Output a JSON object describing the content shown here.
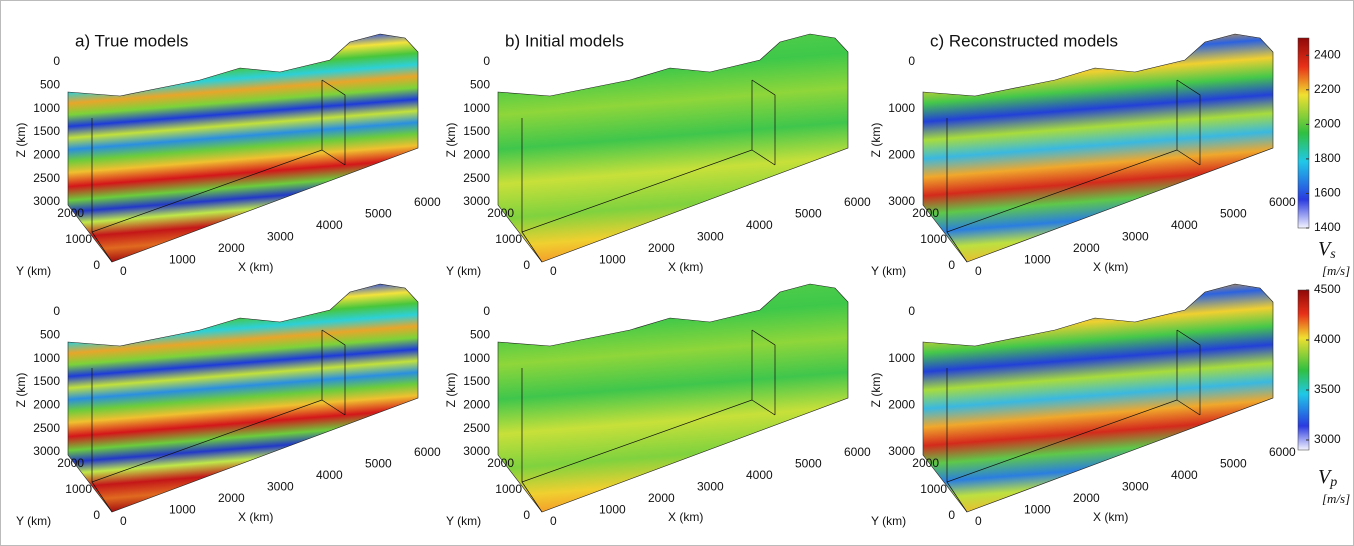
{
  "panels": [
    {
      "title": "a) True models",
      "z_ticks": [
        0,
        500,
        1000,
        1500,
        2000,
        2500,
        3000
      ]
    },
    {
      "title": "b) Initial models",
      "z_ticks": [
        0,
        500,
        1000,
        1500,
        2000,
        2500,
        3000
      ]
    },
    {
      "title": "c) Reconstructed models",
      "z_ticks": [
        0,
        1000,
        2000,
        3000
      ]
    }
  ],
  "axes": {
    "z_label": "Z (km)",
    "y_label": "Y (km)",
    "x_label": "X (km)",
    "y_ticks": [
      0,
      1000,
      2000
    ],
    "x_ticks": [
      0,
      1000,
      2000,
      3000,
      4000,
      5000,
      6000
    ]
  },
  "colorbars": [
    {
      "symbol": "V",
      "subscript": "s",
      "unit": "[m/s]",
      "lim": [
        1400,
        2500
      ],
      "ticks": [
        1400,
        1600,
        1800,
        2000,
        2200,
        2400
      ]
    },
    {
      "symbol": "V",
      "subscript": "p",
      "unit": "[m/s]",
      "lim": [
        2900,
        4500
      ],
      "ticks": [
        3000,
        3500,
        4000,
        4500
      ]
    }
  ]
}
